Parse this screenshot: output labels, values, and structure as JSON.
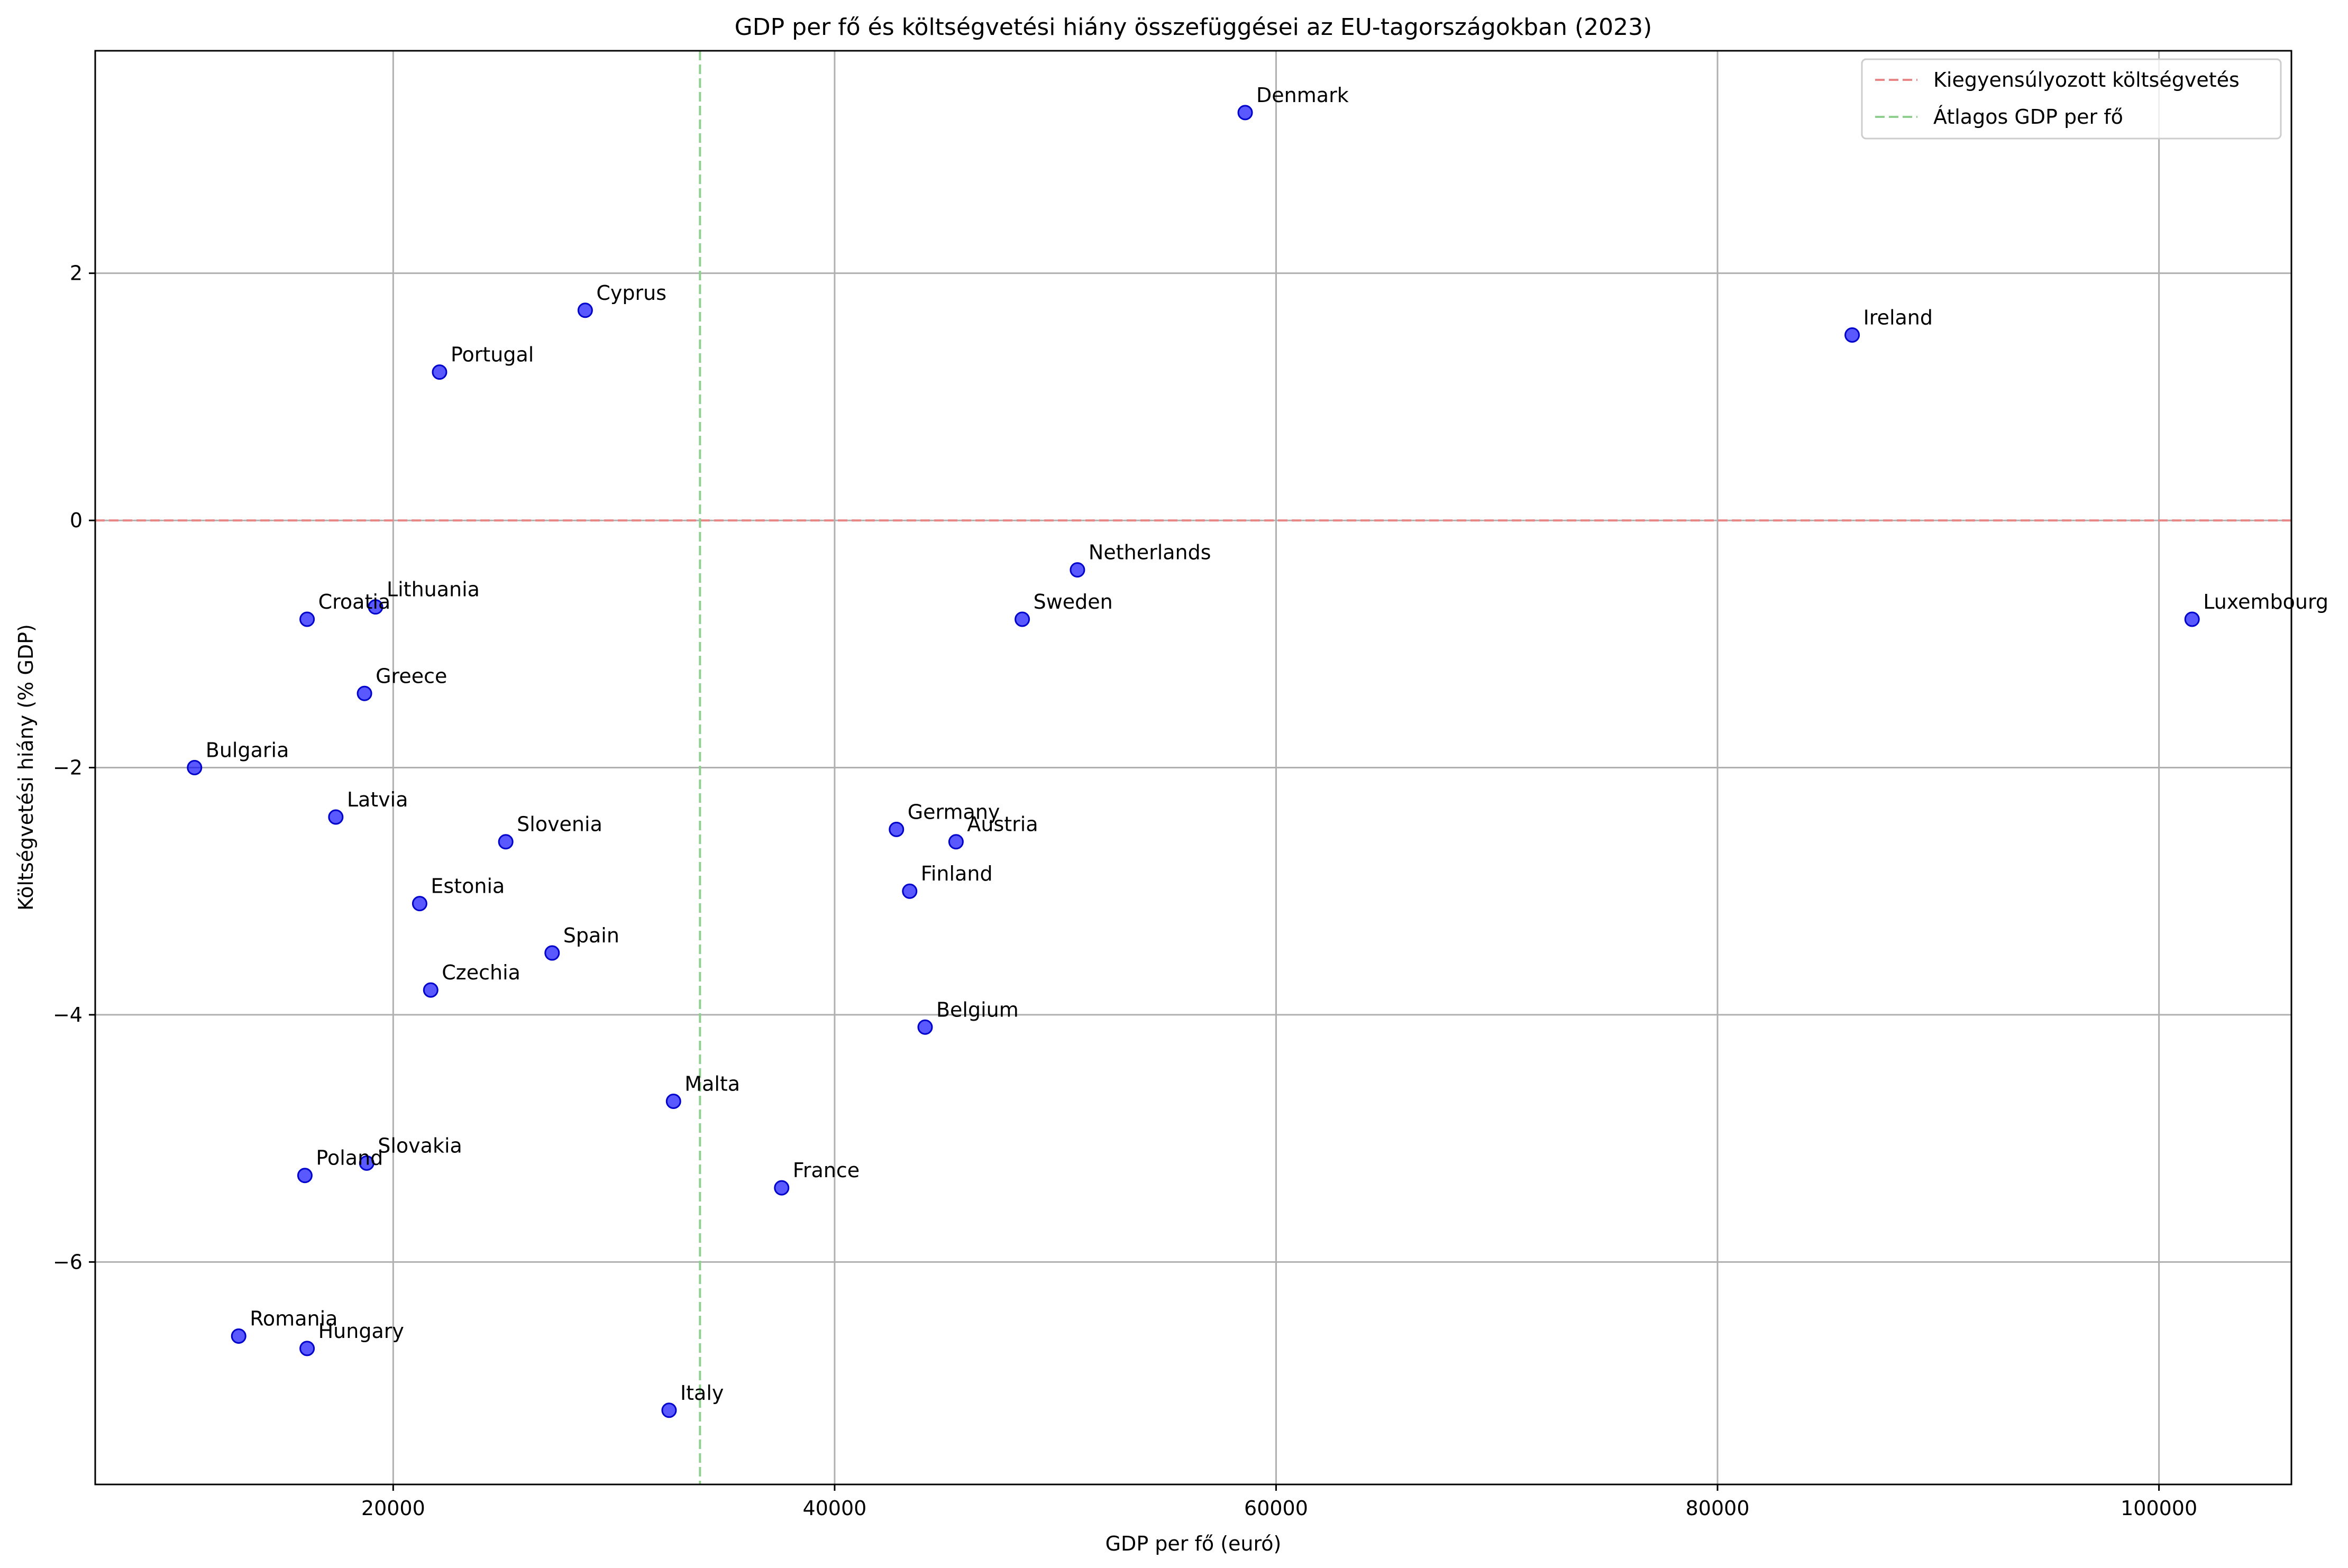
{
  "chart_data": {
    "type": "scatter",
    "title": "GDP per fő és költségvetési hiány összefüggései az EU-tagországokban (2023)",
    "xlabel": "GDP per fő (euró)",
    "ylabel": "Költségvetési hiány (% GDP)",
    "xlim": [
      6500,
      106000
    ],
    "ylim": [
      -7.8,
      3.8
    ],
    "xticks": [
      20000,
      40000,
      60000,
      80000,
      100000
    ],
    "yticks": [
      2,
      0,
      -2,
      -4,
      -6
    ],
    "ytick_labels": [
      "2",
      "0",
      "−2",
      "−4",
      "−6"
    ],
    "grid": true,
    "legend_position": "top-right",
    "point_color": "#0000ff",
    "balanced_line": {
      "y": 0,
      "label": "Kiegyensúlyozott költségvetés",
      "color": "#e88585"
    },
    "avg_gdp_line": {
      "x": 33900,
      "label": "Átlagos GDP per fő",
      "color": "#8fcf8f"
    },
    "points": [
      {
        "name": "Denmark",
        "x": 58600,
        "y": 3.3
      },
      {
        "name": "Cyprus",
        "x": 28700,
        "y": 1.7
      },
      {
        "name": "Ireland",
        "x": 86100,
        "y": 1.5
      },
      {
        "name": "Portugal",
        "x": 22100,
        "y": 1.2
      },
      {
        "name": "Netherlands",
        "x": 51000,
        "y": -0.4
      },
      {
        "name": "Lithuania",
        "x": 19200,
        "y": -0.7
      },
      {
        "name": "Croatia",
        "x": 16100,
        "y": -0.8
      },
      {
        "name": "Sweden",
        "x": 48500,
        "y": -0.8
      },
      {
        "name": "Luxembourg",
        "x": 101500,
        "y": -0.8
      },
      {
        "name": "Greece",
        "x": 18700,
        "y": -1.4
      },
      {
        "name": "Bulgaria",
        "x": 11000,
        "y": -2.0
      },
      {
        "name": "Latvia",
        "x": 17400,
        "y": -2.4
      },
      {
        "name": "Germany",
        "x": 42800,
        "y": -2.5
      },
      {
        "name": "Slovenia",
        "x": 25100,
        "y": -2.6
      },
      {
        "name": "Austria",
        "x": 45500,
        "y": -2.6
      },
      {
        "name": "Finland",
        "x": 43400,
        "y": -3.0
      },
      {
        "name": "Estonia",
        "x": 21200,
        "y": -3.1
      },
      {
        "name": "Spain",
        "x": 27200,
        "y": -3.5
      },
      {
        "name": "Czechia",
        "x": 21700,
        "y": -3.8
      },
      {
        "name": "Belgium",
        "x": 44100,
        "y": -4.1
      },
      {
        "name": "Malta",
        "x": 32700,
        "y": -4.7
      },
      {
        "name": "Slovakia",
        "x": 18800,
        "y": -5.2
      },
      {
        "name": "Poland",
        "x": 16000,
        "y": -5.3
      },
      {
        "name": "France",
        "x": 37600,
        "y": -5.4
      },
      {
        "name": "Romania",
        "x": 13000,
        "y": -6.6
      },
      {
        "name": "Hungary",
        "x": 16100,
        "y": -6.7
      },
      {
        "name": "Italy",
        "x": 32500,
        "y": -7.2
      }
    ]
  }
}
